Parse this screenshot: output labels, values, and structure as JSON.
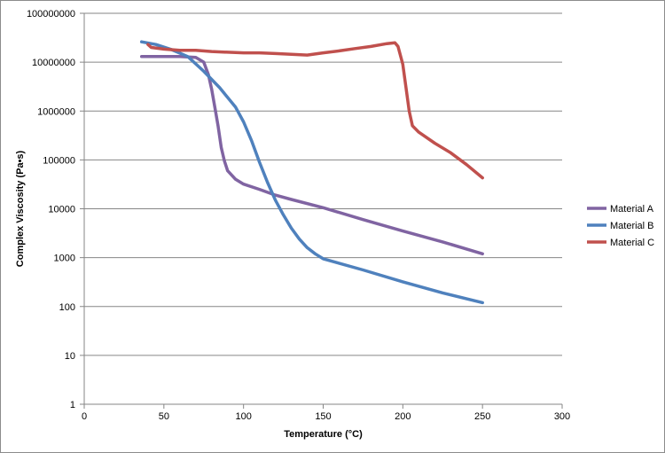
{
  "chart_data": {
    "type": "line",
    "title": "",
    "xlabel": "Temperature (°C)",
    "ylabel": "Complex Viscosity (Pa•s)",
    "xlim": [
      0,
      300
    ],
    "ylim": [
      1,
      100000000
    ],
    "yscale": "log",
    "x_ticks": [
      0,
      50,
      100,
      150,
      200,
      250,
      300
    ],
    "x_tick_labels": [
      "0",
      "50",
      "100",
      "150",
      "200",
      "250",
      "300"
    ],
    "y_ticks": [
      1,
      10,
      100,
      1000,
      10000,
      100000,
      1000000,
      10000000,
      100000000
    ],
    "y_tick_labels": [
      "1",
      "10",
      "100",
      "1000",
      "10000",
      "100000",
      "1000000",
      "10000000",
      "100000000"
    ],
    "grid": "horizontal",
    "legend_position": "right",
    "series": [
      {
        "name": "Material A",
        "color": "#8064A2",
        "points": [
          [
            36,
            13000000
          ],
          [
            50,
            13000000
          ],
          [
            60,
            13000000
          ],
          [
            70,
            12500000
          ],
          [
            75,
            10000000
          ],
          [
            78,
            5500000
          ],
          [
            80,
            2800000
          ],
          [
            82,
            1200000
          ],
          [
            84,
            500000
          ],
          [
            86,
            180000
          ],
          [
            88,
            95000
          ],
          [
            90,
            60000
          ],
          [
            95,
            40000
          ],
          [
            100,
            32000
          ],
          [
            110,
            25000
          ],
          [
            120,
            19000
          ],
          [
            130,
            15500
          ],
          [
            150,
            10500
          ],
          [
            175,
            6000
          ],
          [
            200,
            3500
          ],
          [
            225,
            2100
          ],
          [
            250,
            1200
          ]
        ]
      },
      {
        "name": "Material B",
        "color": "#4F81BD",
        "points": [
          [
            36,
            26000000
          ],
          [
            45,
            23000000
          ],
          [
            55,
            18000000
          ],
          [
            65,
            13000000
          ],
          [
            75,
            6500000
          ],
          [
            85,
            3000000
          ],
          [
            95,
            1200000
          ],
          [
            100,
            600000
          ],
          [
            105,
            250000
          ],
          [
            110,
            90000
          ],
          [
            115,
            35000
          ],
          [
            120,
            15000
          ],
          [
            125,
            7500
          ],
          [
            130,
            4000
          ],
          [
            135,
            2400
          ],
          [
            140,
            1600
          ],
          [
            145,
            1200
          ],
          [
            150,
            950
          ],
          [
            175,
            560
          ],
          [
            200,
            320
          ],
          [
            225,
            190
          ],
          [
            250,
            120
          ]
        ]
      },
      {
        "name": "Material C",
        "color": "#C0504D",
        "points": [
          [
            40,
            23000000
          ],
          [
            42,
            20000000
          ],
          [
            50,
            18500000
          ],
          [
            60,
            17500000
          ],
          [
            70,
            17500000
          ],
          [
            80,
            16500000
          ],
          [
            90,
            16000000
          ],
          [
            100,
            15500000
          ],
          [
            110,
            15500000
          ],
          [
            120,
            15000000
          ],
          [
            130,
            14500000
          ],
          [
            140,
            14000000
          ],
          [
            150,
            15500000
          ],
          [
            160,
            17000000
          ],
          [
            170,
            19000000
          ],
          [
            180,
            21000000
          ],
          [
            190,
            24000000
          ],
          [
            195,
            25000000
          ],
          [
            197,
            21000000
          ],
          [
            200,
            9000000
          ],
          [
            202,
            3000000
          ],
          [
            204,
            1000000
          ],
          [
            206,
            500000
          ],
          [
            210,
            370000
          ],
          [
            220,
            220000
          ],
          [
            230,
            140000
          ],
          [
            240,
            80000
          ],
          [
            250,
            43000
          ]
        ]
      }
    ]
  }
}
